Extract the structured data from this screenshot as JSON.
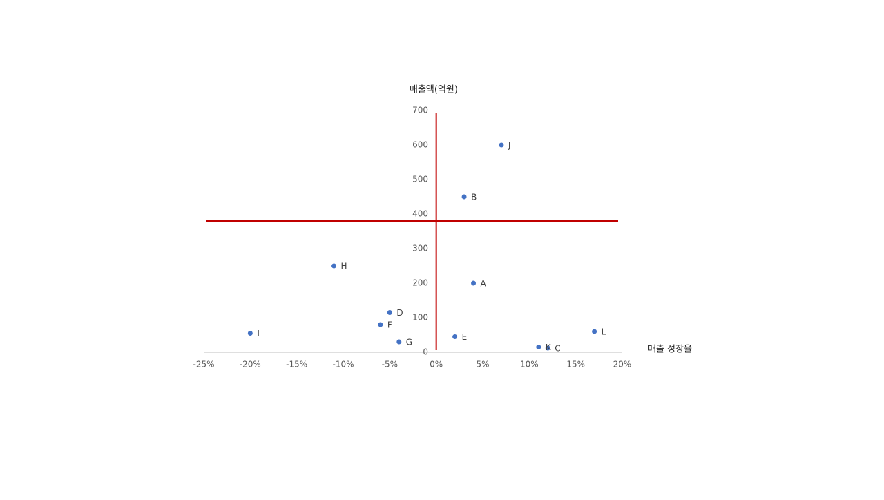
{
  "chart_data": {
    "type": "scatter",
    "x_label": "매출 성장율",
    "y_label": "매출액(억원)",
    "point_labels": [
      "A",
      "B",
      "C",
      "D",
      "E",
      "F",
      "G",
      "H",
      "I",
      "J",
      "K",
      "L"
    ],
    "x": [
      4,
      3,
      12,
      -5,
      2,
      -6,
      -4,
      -11,
      -20,
      7,
      11,
      17
    ],
    "values": [
      200,
      450,
      12,
      115,
      45,
      80,
      30,
      250,
      55,
      600,
      15,
      60
    ],
    "color": "#4472c4",
    "xlim": [
      -25,
      20
    ],
    "xticks": [
      {
        "value": -25,
        "label": "-25%"
      },
      {
        "value": -20,
        "label": "-20%"
      },
      {
        "value": -15,
        "label": "-15%"
      },
      {
        "value": -10,
        "label": "-10%"
      },
      {
        "value": -5,
        "label": "-5%"
      },
      {
        "value": 0,
        "label": "0%"
      },
      {
        "value": 5,
        "label": "5%"
      },
      {
        "value": 10,
        "label": "10%"
      },
      {
        "value": 15,
        "label": "15%"
      },
      {
        "value": 20,
        "label": "20%"
      }
    ],
    "ylim": [
      0,
      700
    ],
    "yticks": [
      0,
      100,
      200,
      300,
      400,
      500,
      600,
      700
    ],
    "reference_lines": {
      "x": 0,
      "y": 380,
      "color": "#c00000"
    }
  }
}
